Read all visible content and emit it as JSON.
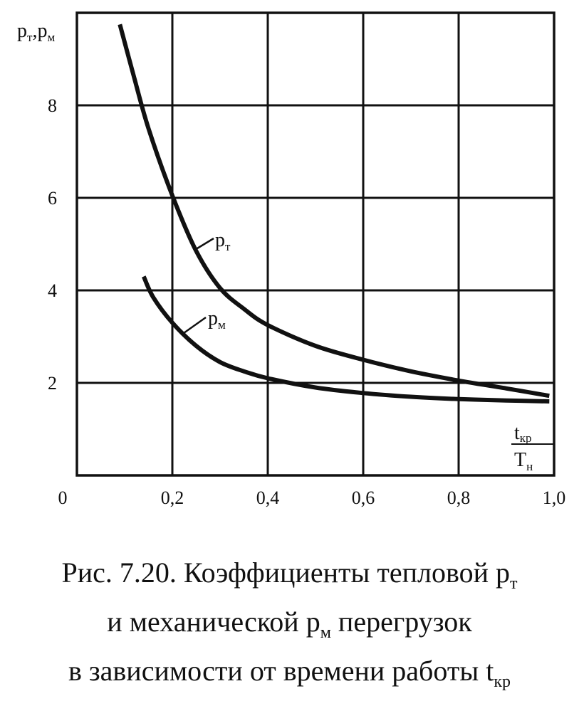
{
  "chart_data": {
    "type": "line",
    "ylabel": {
      "base1": "p",
      "sub1": "т",
      "sep": ",",
      "base2": "p",
      "sub2": "м"
    },
    "xlabel": {
      "num_base": "t",
      "num_sub": "кр",
      "den_base": "T",
      "den_sub": "н"
    },
    "xlim": [
      0,
      1.0
    ],
    "ylim": [
      0,
      10
    ],
    "x_ticks": [
      0,
      0.2,
      0.4,
      0.6,
      0.8,
      1.0
    ],
    "x_tick_labels": [
      "0",
      "0,2",
      "0,4",
      "0,6",
      "0,8",
      "1,0"
    ],
    "y_ticks": [
      2,
      4,
      6,
      8
    ],
    "y_tick_labels": [
      "2",
      "4",
      "6",
      "8"
    ],
    "grid": true,
    "series": [
      {
        "name": "pт",
        "label": {
          "base": "p",
          "sub": "т"
        },
        "x": [
          0.09,
          0.12,
          0.15,
          0.2,
          0.25,
          0.3,
          0.35,
          0.4,
          0.5,
          0.6,
          0.7,
          0.8,
          0.9,
          0.99
        ],
        "y": [
          9.75,
          8.6,
          7.5,
          6.05,
          4.85,
          4.05,
          3.6,
          3.25,
          2.8,
          2.5,
          2.25,
          2.05,
          1.88,
          1.72
        ]
      },
      {
        "name": "pм",
        "label": {
          "base": "p",
          "sub": "м"
        },
        "x": [
          0.14,
          0.16,
          0.2,
          0.25,
          0.3,
          0.35,
          0.4,
          0.5,
          0.6,
          0.7,
          0.8,
          0.9,
          0.99
        ],
        "y": [
          4.3,
          3.85,
          3.3,
          2.8,
          2.45,
          2.25,
          2.1,
          1.9,
          1.78,
          1.7,
          1.65,
          1.62,
          1.6
        ]
      }
    ]
  },
  "caption": {
    "line1_a": "Рис. 7.20. Коэффициенты тепловой p",
    "line1_sub": "т",
    "line2_a": "и механической p",
    "line2_sub": "м",
    "line2_b": " перегрузок",
    "line3_a": "в зависимости от времени работы t",
    "line3_sub": "кр"
  }
}
